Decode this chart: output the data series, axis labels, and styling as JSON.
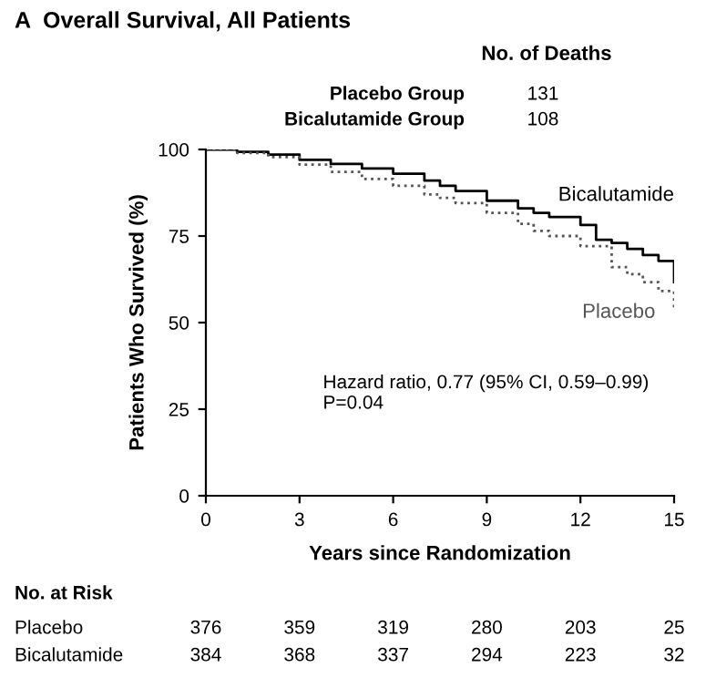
{
  "chart_data": {
    "type": "step",
    "title": "A  Overall Survival, All Patients",
    "xlabel": "Years since Randomization",
    "ylabel": "Patients Who Survived (%)",
    "xlim": [
      0,
      15
    ],
    "xticks": [
      0,
      3,
      6,
      9,
      12,
      15
    ],
    "ylim": [
      0,
      100
    ],
    "yticks": [
      0,
      25,
      50,
      75,
      100
    ],
    "grid": false,
    "legend": false,
    "series": [
      {
        "name": "Bicalutamide",
        "color": "#000000",
        "line_style": "solid",
        "x": [
          0,
          1,
          2,
          3,
          4,
          5,
          6,
          7,
          7.5,
          8,
          9,
          10,
          10.5,
          11,
          12,
          12.5,
          13,
          13.5,
          14,
          14.5,
          15,
          15
        ],
        "values": [
          100,
          99.3,
          98.5,
          97,
          95.8,
          94.5,
          93,
          91,
          89.5,
          88,
          85.2,
          83,
          81.7,
          80.5,
          78.2,
          73.9,
          73,
          71.3,
          69.5,
          67.8,
          65.2,
          61.7
        ]
      },
      {
        "name": "Placebo",
        "color": "#555555",
        "line_style": "dotted",
        "x": [
          0,
          1,
          2,
          3,
          4,
          5,
          6,
          7,
          7.5,
          8,
          9,
          10,
          10.5,
          11,
          12,
          13,
          13.5,
          14,
          14.5,
          15,
          15
        ],
        "values": [
          100,
          99,
          97.8,
          95.6,
          93.5,
          91.5,
          89.5,
          87,
          86,
          84.5,
          81.7,
          78.5,
          76.5,
          75,
          72.1,
          66,
          64,
          61.7,
          59.1,
          56,
          53.9
        ]
      }
    ],
    "annotations": [
      "No. of Deaths",
      "Placebo Group",
      "131",
      "Bicalutamide Group",
      "108",
      "Hazard ratio, 0.77 (95% CI, 0.59–0.99)\nP=0.04",
      "No. at Risk",
      "Placebo",
      "376",
      "359",
      "319",
      "280",
      "203",
      "25",
      "Bicalutamide",
      "384",
      "368",
      "337",
      "294",
      "223",
      "32"
    ]
  }
}
